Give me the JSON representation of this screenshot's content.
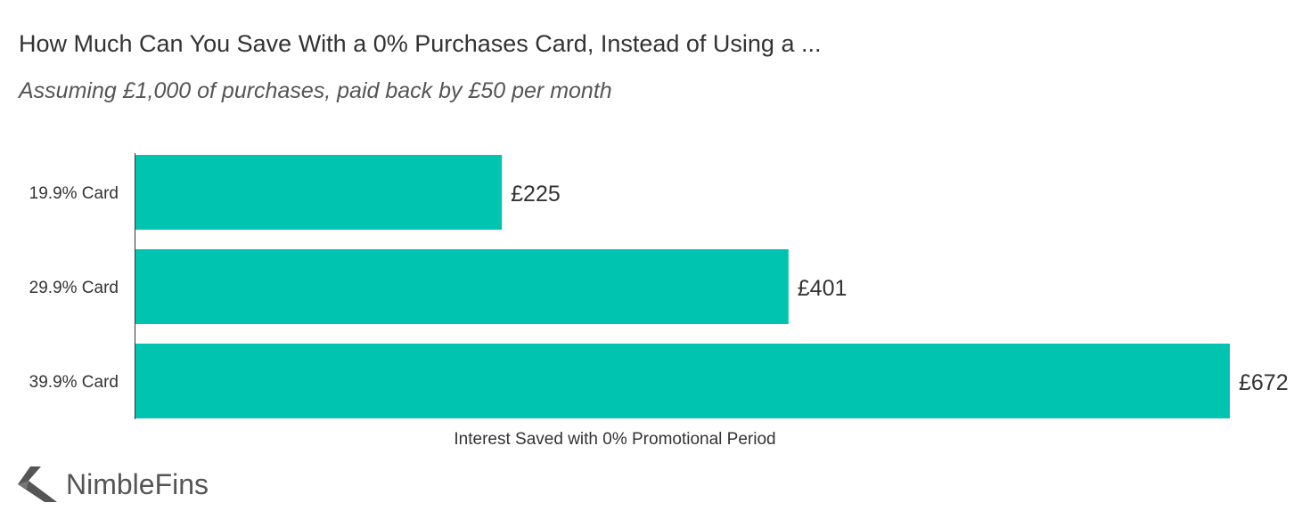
{
  "header": {
    "title": "How Much Can You Save With a 0% Purchases Card, Instead of Using a ...",
    "subtitle": "Assuming £1,000 of purchases, paid back by £50 per month"
  },
  "chart_data": {
    "type": "bar",
    "orientation": "horizontal",
    "title": "How Much Can You Save With a 0% Purchases Card, Instead of Using a ...",
    "subtitle": "Assuming £1,000 of purchases, paid back by £50 per month",
    "categories": [
      "19.9% Card",
      "29.9% Card",
      "39.9% Card"
    ],
    "values": [
      225,
      401,
      672
    ],
    "value_labels": [
      "£225",
      "£401",
      "£672"
    ],
    "xlabel": "Interest Saved with 0% Promotional Period",
    "ylabel": "",
    "xlim": [
      0,
      672
    ],
    "grid": false,
    "bar_color": "#00c4b0"
  },
  "brand": {
    "name": "NimbleFins",
    "logo_icon": "chevron-arrow-logo-icon",
    "logo_color": "#555555"
  }
}
